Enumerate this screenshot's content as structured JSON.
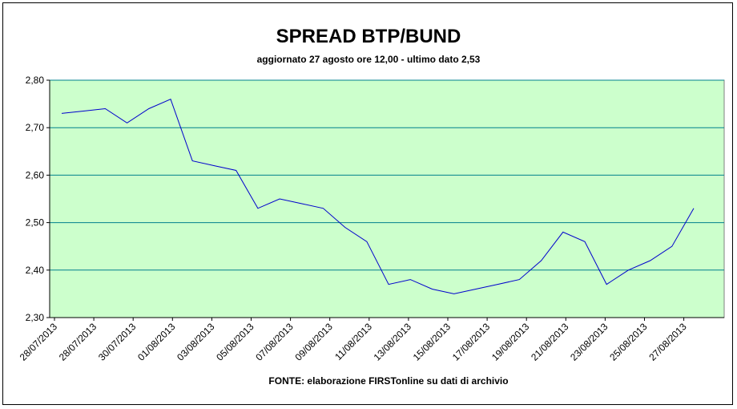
{
  "chart_data": {
    "type": "line",
    "title": "SPREAD BTP/BUND",
    "subtitle": "aggiornato 27 agosto ore 12,00 - ultimo dato 2,53",
    "source": "FONTE:  elaborazione FIRSTonline su dati di archivio",
    "xlabel": "",
    "ylabel": "",
    "ylim": [
      2.3,
      2.8
    ],
    "y_ticks": [
      "2,30",
      "2,40",
      "2,50",
      "2,60",
      "2,70",
      "2,80"
    ],
    "x_tick_labels": [
      "28/07/2013",
      "28/07/2013",
      "30/07/2013",
      "01/08/2013",
      "03/08/2013",
      "05/08/2013",
      "07/08/2013",
      "09/08/2013",
      "11/08/2013",
      "13/08/2013",
      "15/08/2013",
      "17/08/2013",
      "19/08/2013",
      "21/08/2013",
      "23/08/2013",
      "25/08/2013",
      "27/08/2013"
    ],
    "grid": true,
    "plot_background": "#ccffcc",
    "gridline_color": "#00808c",
    "line_color": "#0000cc",
    "series": [
      {
        "values": [
          2.73,
          2.735,
          2.74,
          2.71,
          2.74,
          2.76,
          2.63,
          2.62,
          2.61,
          2.53,
          2.55,
          2.54,
          2.53,
          2.49,
          2.46,
          2.37,
          2.38,
          2.36,
          2.35,
          2.36,
          2.37,
          2.38,
          2.42,
          2.48,
          2.46,
          2.37,
          2.4,
          2.42,
          2.45,
          2.53
        ]
      }
    ]
  }
}
